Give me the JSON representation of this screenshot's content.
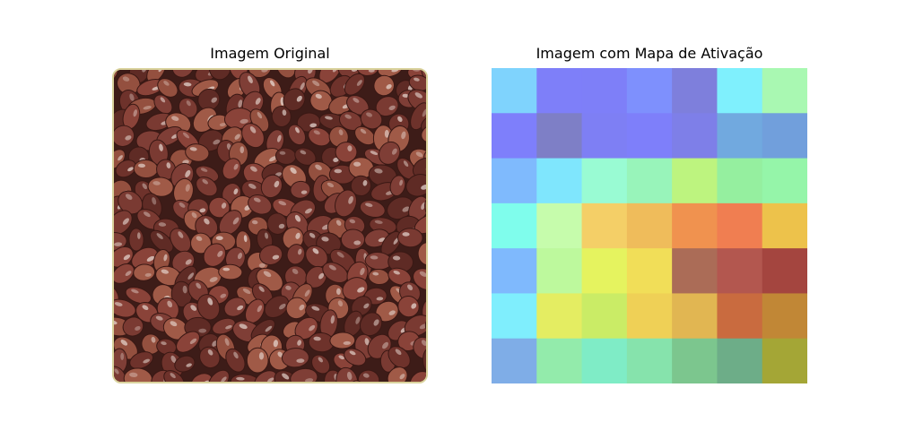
{
  "panels": {
    "left_title": "Imagem Original",
    "right_title": "Imagem com Mapa de Ativação"
  },
  "chart_data": [
    {
      "type": "image",
      "title": "Imagem Original",
      "content": "photo",
      "axes": "off"
    },
    {
      "type": "heatmap",
      "title": "Imagem com Mapa de Ativação",
      "axes": "off",
      "rows": 7,
      "cols": 7,
      "cell_colors": [
        [
          "#7fd3fd",
          "#7e7ff9",
          "#7e7ff8",
          "#7e90fd",
          "#7e7fdc",
          "#7ff0fd",
          "#a9f8b2"
        ],
        [
          "#7e7ffb",
          "#7e7fc6",
          "#7e7ff4",
          "#7e7ffa",
          "#7e7fe8",
          "#71a9df",
          "#719fdc"
        ],
        [
          "#7fbafd",
          "#7fe6fd",
          "#99fbd3",
          "#98f4ba",
          "#bdf47f",
          "#95ef9f",
          "#95f5a9"
        ],
        [
          "#7ffdec",
          "#c6fcac",
          "#f4cf67",
          "#efbc5b",
          "#f0924f",
          "#f07e51",
          "#edc24b"
        ],
        [
          "#7fb9fd",
          "#bdf99d",
          "#e5f35f",
          "#f1de58",
          "#ab6c57",
          "#b3574f",
          "#a4453f"
        ],
        [
          "#7feefd",
          "#e4ed62",
          "#caec66",
          "#efd056",
          "#e1b652",
          "#c96b3f",
          "#c18736"
        ],
        [
          "#7fade7",
          "#93ebab",
          "#7fecc6",
          "#86e3ac",
          "#7cc68e",
          "#6dad88",
          "#a4a636"
        ]
      ]
    }
  ]
}
